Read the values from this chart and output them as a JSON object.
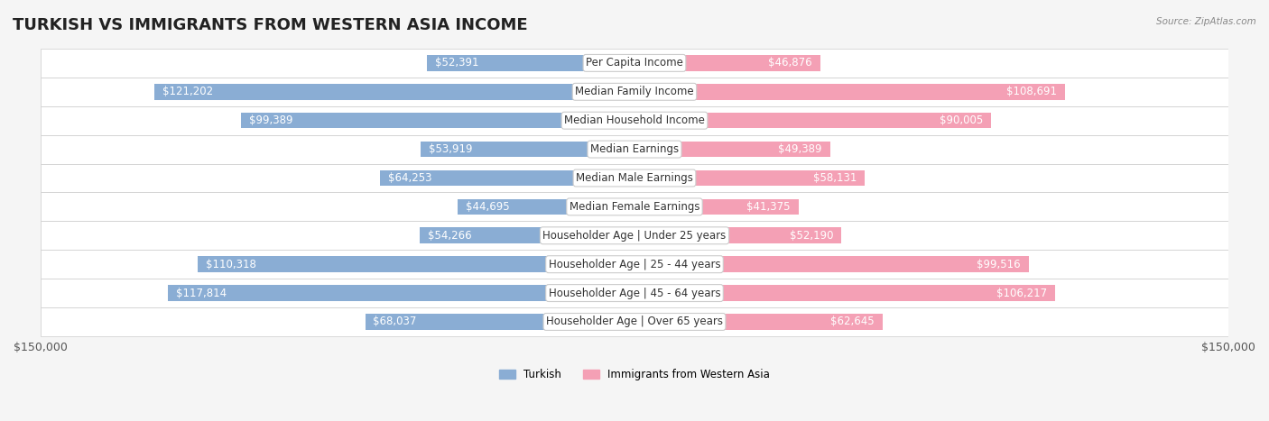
{
  "title": "TURKISH VS IMMIGRANTS FROM WESTERN ASIA INCOME",
  "source": "Source: ZipAtlas.com",
  "categories": [
    "Per Capita Income",
    "Median Family Income",
    "Median Household Income",
    "Median Earnings",
    "Median Male Earnings",
    "Median Female Earnings",
    "Householder Age | Under 25 years",
    "Householder Age | 25 - 44 years",
    "Householder Age | 45 - 64 years",
    "Householder Age | Over 65 years"
  ],
  "turkish_values": [
    52391,
    121202,
    99389,
    53919,
    64253,
    44695,
    54266,
    110318,
    117814,
    68037
  ],
  "immigrant_values": [
    46876,
    108691,
    90005,
    49389,
    58131,
    41375,
    52190,
    99516,
    106217,
    62645
  ],
  "turkish_color": "#8aadd4",
  "immigrant_color": "#f4a0b5",
  "turkish_label": "Turkish",
  "immigrant_label": "Immigrants from Western Asia",
  "bar_height": 0.55,
  "max_value": 150000,
  "background_color": "#f5f5f5",
  "row_bg_color": "#ffffff",
  "label_fontsize": 8.5,
  "title_fontsize": 13,
  "axis_label_fontsize": 9
}
